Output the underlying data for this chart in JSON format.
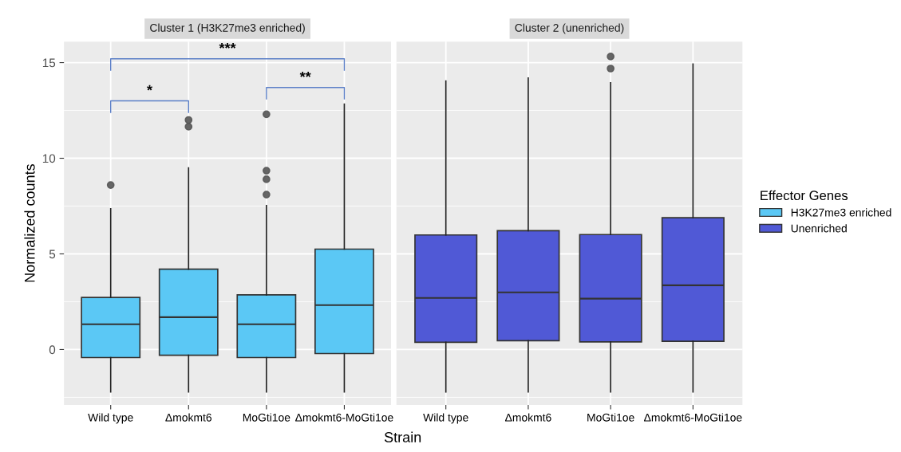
{
  "chart_data": [
    {
      "type": "box",
      "title": "Cluster 1 (H3K27me3 enriched)",
      "xlabel": "Strain",
      "ylabel": "Normalized counts",
      "categories": [
        "Wild type",
        "Δmokmt6",
        "MoGti1oe",
        "Δmokmt6-MoGti1oe"
      ],
      "ylim": [
        -2.9,
        16.1
      ],
      "yticks": [
        0,
        5,
        10,
        15
      ],
      "grid": true,
      "series": [
        {
          "name": "H3K27me3 enriched",
          "color": "#5bc8f5",
          "boxes": [
            {
              "low": -2.22,
              "q1": -0.42,
              "median": 1.32,
              "q3": 2.72,
              "high": 7.36,
              "outliers": [
                8.6
              ]
            },
            {
              "low": -2.22,
              "q1": -0.3,
              "median": 1.69,
              "q3": 4.2,
              "high": 9.5,
              "outliers": [
                11.65,
                12.0
              ]
            },
            {
              "low": -2.22,
              "q1": -0.42,
              "median": 1.32,
              "q3": 2.86,
              "high": 7.53,
              "outliers": [
                8.1,
                8.9,
                9.35,
                12.3
              ]
            },
            {
              "low": -2.22,
              "q1": -0.21,
              "median": 2.32,
              "q3": 5.25,
              "high": 12.83
            }
          ]
        }
      ],
      "annotations": [
        "*",
        "**",
        "***"
      ]
    },
    {
      "type": "box",
      "title": "Cluster 2 (unenriched)",
      "categories": [
        "Wild type",
        "Δmokmt6",
        "MoGti1oe",
        "Δmokmt6-MoGti1oe"
      ],
      "ylim": [
        -2.9,
        16.1
      ],
      "yticks": [
        0,
        5,
        10,
        15
      ],
      "grid": true,
      "tick_labels": "x",
      "legend": "right",
      "legend_title": "Effector Genes",
      "series": [
        {
          "name": "Unenriched",
          "color": "#5059d6",
          "boxes": [
            {
              "low": -2.22,
              "q1": 0.38,
              "median": 2.7,
              "q3": 5.99,
              "high": 14.04
            },
            {
              "low": -2.22,
              "q1": 0.46,
              "median": 2.99,
              "q3": 6.21,
              "high": 14.2
            },
            {
              "low": -2.22,
              "q1": 0.4,
              "median": 2.66,
              "q3": 6.01,
              "high": 13.95,
              "outliers": [
                14.69,
                15.32
              ]
            },
            {
              "low": -2.22,
              "q1": 0.43,
              "median": 3.36,
              "q3": 6.89,
              "high": 14.93
            }
          ]
        }
      ]
    }
  ]
}
